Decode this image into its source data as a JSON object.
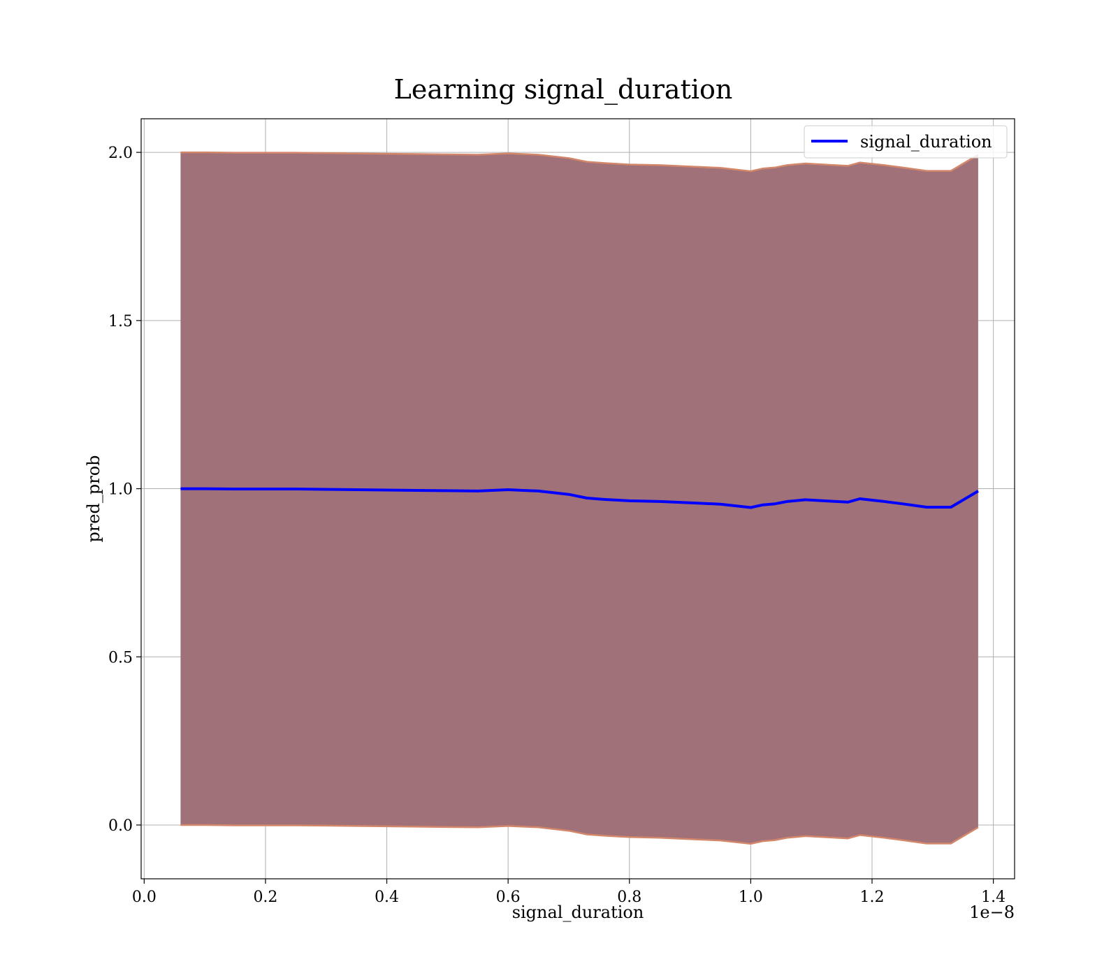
{
  "chart_data": {
    "type": "area",
    "title": "Learning signal_duration",
    "xlabel": "signal_duration",
    "ylabel": "pred_prob",
    "x_offset_label": "1e−8",
    "xlim": [
      -0.005,
      1.435
    ],
    "ylim": [
      -0.16,
      2.1
    ],
    "xticks": [
      0.0,
      0.2,
      0.4,
      0.6,
      0.8,
      1.0,
      1.2,
      1.4
    ],
    "xtick_labels": [
      "0.0",
      "0.2",
      "0.4",
      "0.6",
      "0.8",
      "1.0",
      "1.2",
      "1.4"
    ],
    "yticks": [
      0.0,
      0.5,
      1.0,
      1.5,
      2.0
    ],
    "ytick_labels": [
      "0.0",
      "0.5",
      "1.0",
      "1.5",
      "2.0"
    ],
    "grid": true,
    "legend_position": "top-right",
    "colors": {
      "line": "#0000ff",
      "band_fill": "#a1717a",
      "band_edge": "#d3876a",
      "grid": "#b0b0b0"
    },
    "series": [
      {
        "name": "signal_duration",
        "x": [
          0.06,
          0.1,
          0.15,
          0.2,
          0.25,
          0.3,
          0.35,
          0.4,
          0.45,
          0.5,
          0.55,
          0.6,
          0.65,
          0.7,
          0.73,
          0.76,
          0.8,
          0.85,
          0.9,
          0.95,
          1.0,
          1.02,
          1.04,
          1.06,
          1.09,
          1.13,
          1.16,
          1.18,
          1.22,
          1.25,
          1.29,
          1.33,
          1.375
        ],
        "y": [
          1.0,
          1.0,
          0.999,
          0.999,
          0.999,
          0.998,
          0.997,
          0.996,
          0.995,
          0.994,
          0.993,
          0.997,
          0.993,
          0.983,
          0.972,
          0.968,
          0.964,
          0.962,
          0.958,
          0.954,
          0.944,
          0.952,
          0.955,
          0.962,
          0.967,
          0.963,
          0.96,
          0.97,
          0.962,
          0.955,
          0.945,
          0.945,
          0.993
        ],
        "lower": [
          0.0,
          0.0,
          -0.001,
          -0.001,
          -0.001,
          -0.002,
          -0.003,
          -0.004,
          -0.005,
          -0.006,
          -0.007,
          -0.003,
          -0.007,
          -0.017,
          -0.028,
          -0.032,
          -0.036,
          -0.038,
          -0.042,
          -0.046,
          -0.056,
          -0.048,
          -0.045,
          -0.038,
          -0.033,
          -0.037,
          -0.04,
          -0.03,
          -0.038,
          -0.045,
          -0.055,
          -0.055,
          -0.007
        ],
        "upper": [
          2.0,
          2.0,
          1.999,
          1.999,
          1.999,
          1.998,
          1.997,
          1.996,
          1.995,
          1.994,
          1.993,
          1.997,
          1.993,
          1.983,
          1.972,
          1.968,
          1.964,
          1.962,
          1.958,
          1.954,
          1.944,
          1.952,
          1.955,
          1.962,
          1.967,
          1.963,
          1.96,
          1.97,
          1.962,
          1.955,
          1.945,
          1.945,
          1.993
        ]
      }
    ]
  }
}
